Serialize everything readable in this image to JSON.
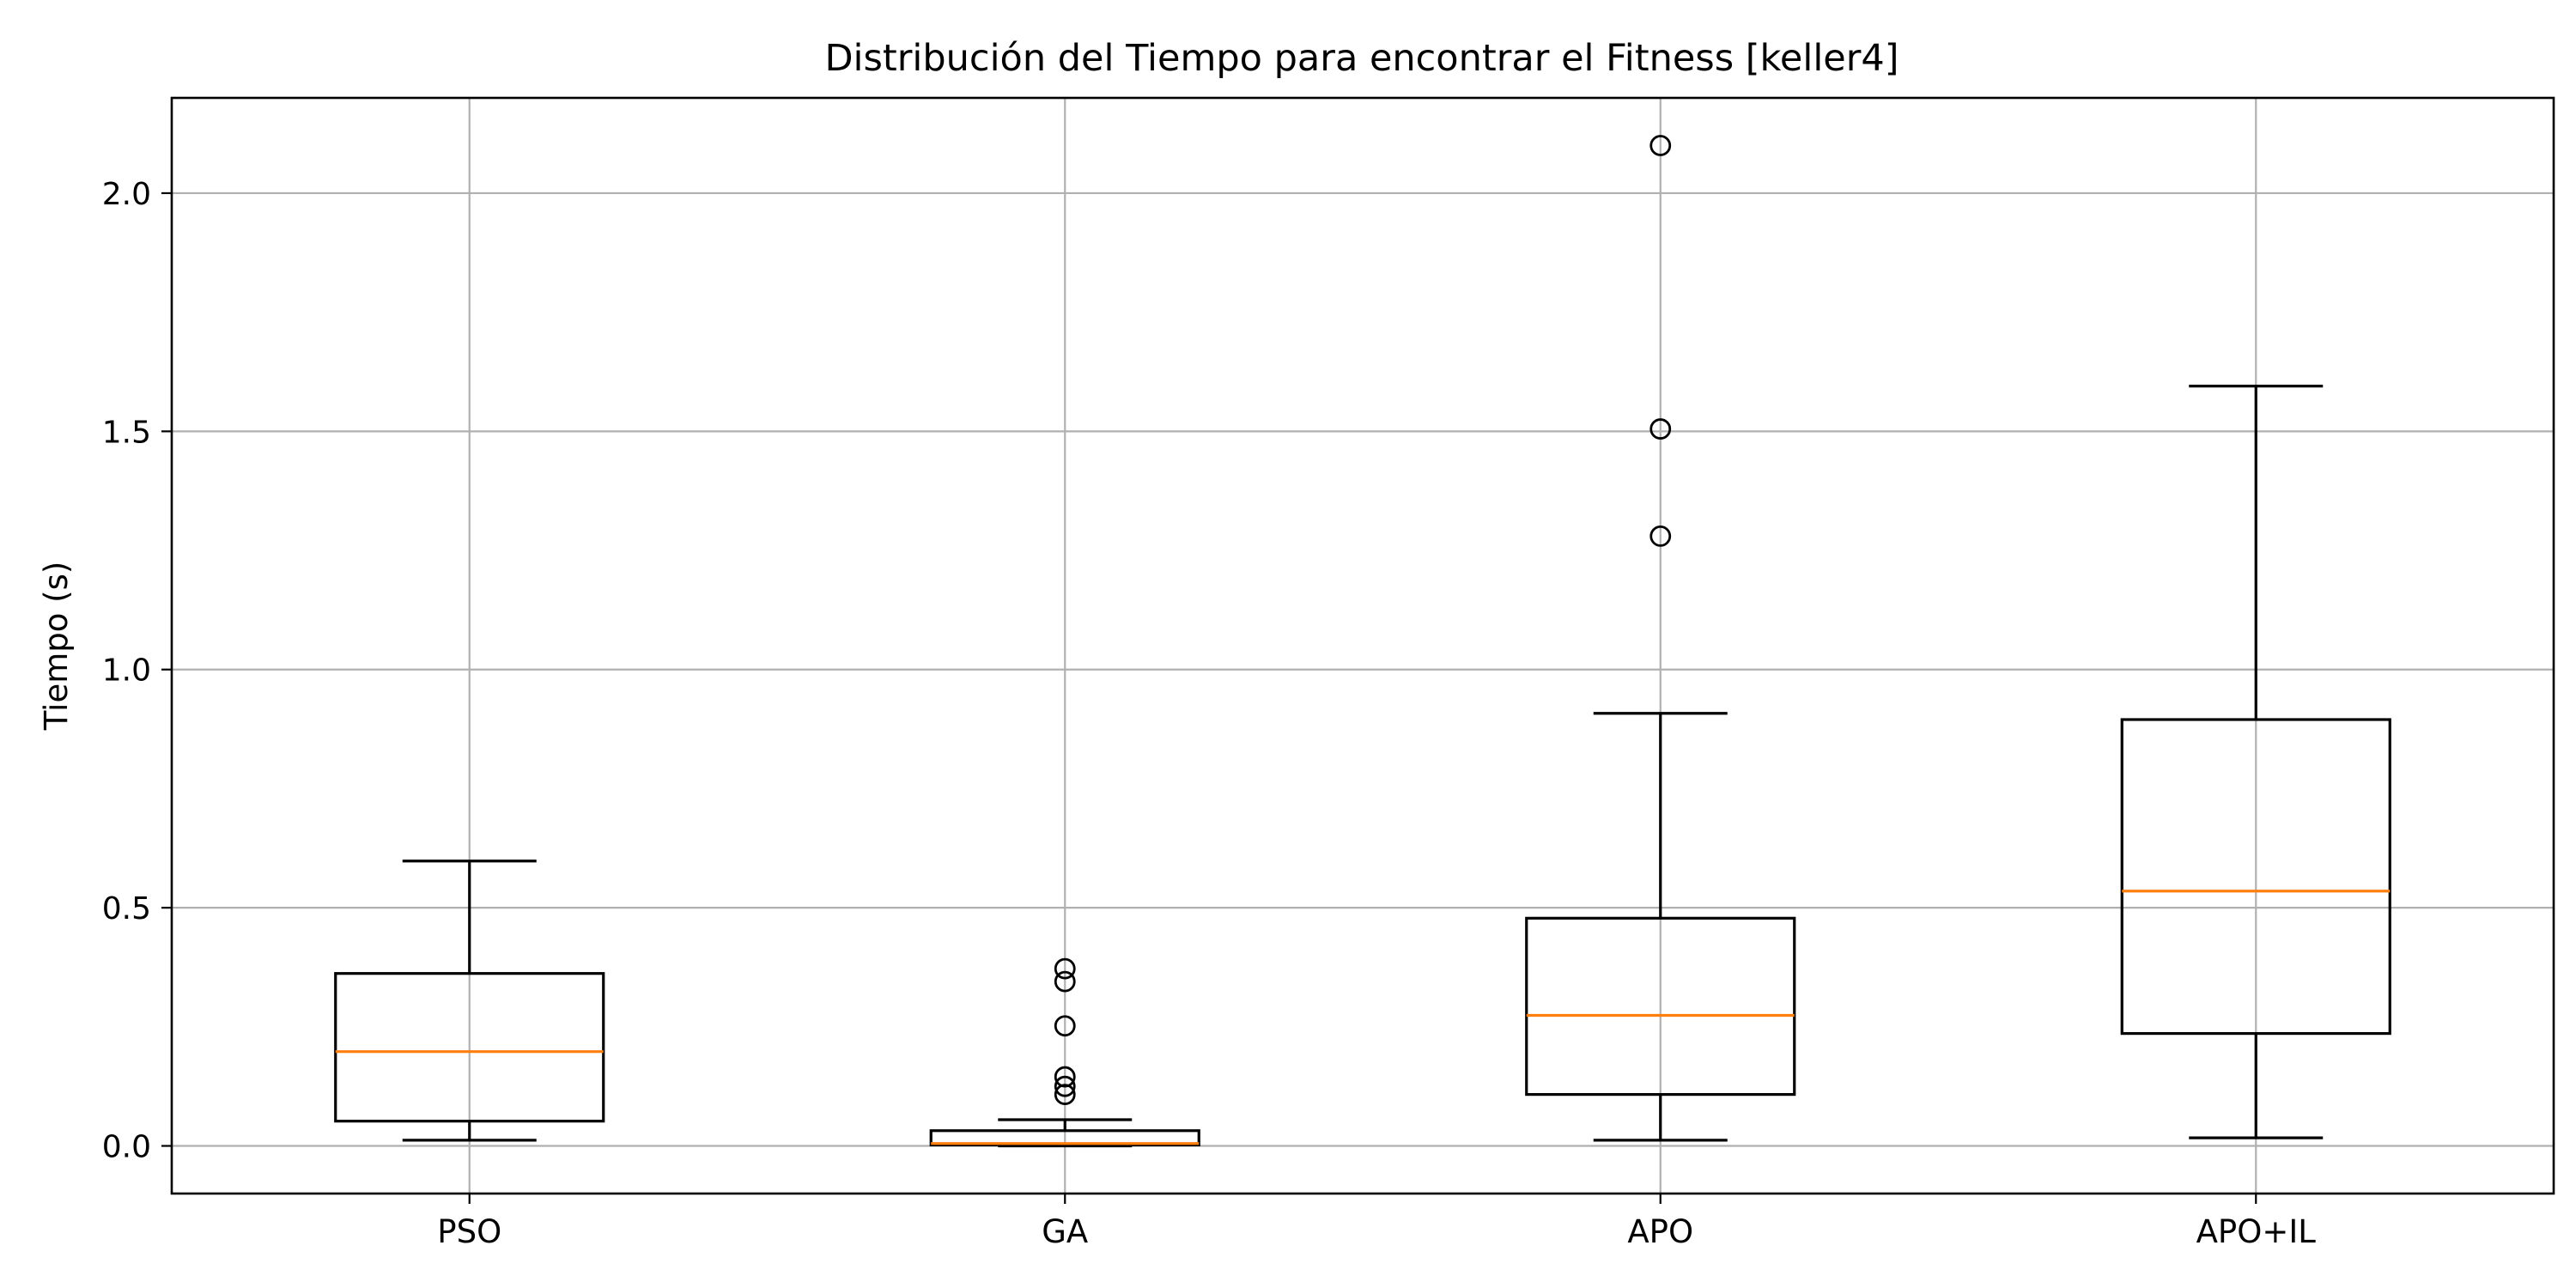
{
  "chart_data": {
    "type": "boxplot",
    "title": "Distribución del Tiempo para encontrar el Fitness [keller4]",
    "xlabel": "",
    "ylabel": "Tiempo (s)",
    "ylim": [
      -0.1,
      2.2
    ],
    "yticks": [
      0.0,
      0.5,
      1.0,
      1.5,
      2.0
    ],
    "ytick_labels": [
      "0.0",
      "0.5",
      "1.0",
      "1.5",
      "2.0"
    ],
    "grid": true,
    "categories": [
      "PSO",
      "GA",
      "APO",
      "APO+IL"
    ],
    "boxes": [
      {
        "name": "PSO",
        "whisker_low": 0.012,
        "q1": 0.052,
        "median": 0.198,
        "q3": 0.362,
        "whisker_high": 0.598,
        "outliers": []
      },
      {
        "name": "GA",
        "whisker_low": 0.0,
        "q1": 0.002,
        "median": 0.005,
        "q3": 0.032,
        "whisker_high": 0.055,
        "outliers": [
          0.108,
          0.125,
          0.145,
          0.252,
          0.345,
          0.372
        ]
      },
      {
        "name": "APO",
        "whisker_low": 0.012,
        "q1": 0.108,
        "median": 0.274,
        "q3": 0.478,
        "whisker_high": 0.908,
        "outliers": [
          1.28,
          1.505,
          2.1
        ]
      },
      {
        "name": "APO+IL",
        "whisker_low": 0.017,
        "q1": 0.236,
        "median": 0.535,
        "q3": 0.895,
        "whisker_high": 1.595,
        "outliers": []
      }
    ],
    "colors": {
      "box": "#000000",
      "median": "#ff7f0e",
      "grid": "#b0b0b0"
    }
  }
}
